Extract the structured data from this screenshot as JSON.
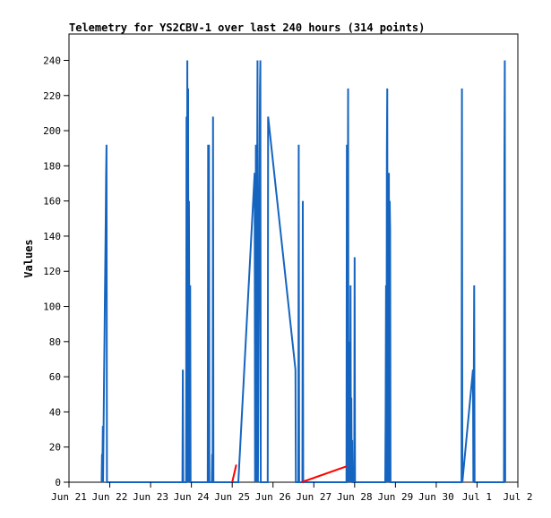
{
  "chart_data": {
    "type": "line",
    "title": "Telemetry for YS2CBV-1 over last 240 hours (314 points)",
    "xlabel": "",
    "ylabel": "Values",
    "x_range": [
      "Jun 21",
      "Jul 2"
    ],
    "ylim": [
      0,
      255
    ],
    "x_ticks": [
      "Jun 21",
      "Jun 22",
      "Jun 23",
      "Jun 24",
      "Jun 25",
      "Jun 26",
      "Jun 27",
      "Jun 28",
      "Jun 29",
      "Jun 30",
      "Jul 1",
      "Jul 2"
    ],
    "y_ticks": [
      0,
      20,
      40,
      60,
      80,
      100,
      120,
      140,
      160,
      180,
      200,
      220,
      240
    ],
    "grid": false,
    "legend": "none",
    "series": [
      {
        "color": "#1565c0",
        "points": [
          [
            21.8,
            0
          ],
          [
            21.81,
            16
          ],
          [
            21.815,
            0
          ],
          [
            21.83,
            32
          ],
          [
            21.835,
            0
          ],
          [
            21.85,
            36
          ],
          [
            21.86,
            60
          ],
          [
            21.87,
            80
          ],
          [
            21.88,
            104
          ],
          [
            21.89,
            126
          ],
          [
            21.9,
            148
          ],
          [
            21.91,
            176
          ],
          [
            21.92,
            192
          ],
          [
            21.93,
            0
          ],
          [
            23.78,
            0
          ],
          [
            23.79,
            64
          ],
          [
            23.8,
            0
          ],
          [
            23.87,
            0
          ],
          [
            23.88,
            208
          ],
          [
            23.89,
            104
          ],
          [
            23.9,
            240
          ],
          [
            23.91,
            0
          ],
          [
            23.92,
            224
          ],
          [
            23.93,
            0
          ],
          [
            23.94,
            160
          ],
          [
            23.95,
            80
          ],
          [
            23.96,
            0
          ],
          [
            23.97,
            112
          ],
          [
            23.98,
            0
          ],
          [
            24.4,
            0
          ],
          [
            24.41,
            192
          ],
          [
            24.42,
            0
          ],
          [
            24.43,
            192
          ],
          [
            24.44,
            0
          ],
          [
            24.5,
            0
          ],
          [
            24.51,
            16
          ],
          [
            24.52,
            0
          ],
          [
            24.53,
            208
          ],
          [
            24.54,
            0
          ],
          [
            25.15,
            0
          ],
          [
            25.55,
            176
          ],
          [
            25.56,
            0
          ],
          [
            25.58,
            192
          ],
          [
            25.59,
            0
          ],
          [
            25.62,
            240
          ],
          [
            25.63,
            0
          ],
          [
            25.68,
            224
          ],
          [
            25.69,
            240
          ],
          [
            25.7,
            0
          ],
          [
            25.87,
            0
          ],
          [
            25.88,
            208
          ],
          [
            26.55,
            64
          ],
          [
            26.56,
            0
          ],
          [
            26.62,
            0
          ],
          [
            26.63,
            192
          ],
          [
            26.64,
            0
          ],
          [
            26.72,
            0
          ],
          [
            26.73,
            160
          ],
          [
            26.74,
            0
          ],
          [
            27.8,
            0
          ],
          [
            27.81,
            192
          ],
          [
            27.82,
            0
          ],
          [
            27.84,
            224
          ],
          [
            27.85,
            0
          ],
          [
            27.86,
            56
          ],
          [
            27.87,
            0
          ],
          [
            27.88,
            80
          ],
          [
            27.89,
            0
          ],
          [
            27.9,
            112
          ],
          [
            27.91,
            0
          ],
          [
            27.92,
            48
          ],
          [
            27.93,
            0
          ],
          [
            27.94,
            24
          ],
          [
            27.95,
            0
          ],
          [
            27.99,
            0
          ],
          [
            28.0,
            128
          ],
          [
            28.01,
            0
          ],
          [
            28.75,
            0
          ],
          [
            28.76,
            40
          ],
          [
            28.77,
            112
          ],
          [
            28.78,
            0
          ],
          [
            28.79,
            188
          ],
          [
            28.8,
            224
          ],
          [
            28.81,
            0
          ],
          [
            28.84,
            176
          ],
          [
            28.85,
            0
          ],
          [
            28.86,
            160
          ],
          [
            28.87,
            144
          ],
          [
            28.88,
            0
          ],
          [
            30.62,
            0
          ],
          [
            30.63,
            224
          ],
          [
            30.64,
            0
          ],
          [
            30.9,
            64
          ],
          [
            30.91,
            0
          ],
          [
            30.93,
            112
          ],
          [
            30.94,
            0
          ],
          [
            31.66,
            0
          ],
          [
            31.67,
            176
          ],
          [
            31.68,
            240
          ],
          [
            31.69,
            0
          ]
        ]
      },
      {
        "color": "#ff0000",
        "points": [
          [
            25.0,
            0
          ],
          [
            25.1,
            10
          ]
        ]
      },
      {
        "color": "#ff0000",
        "points": [
          [
            26.7,
            0
          ],
          [
            27.8,
            9
          ]
        ]
      }
    ]
  }
}
